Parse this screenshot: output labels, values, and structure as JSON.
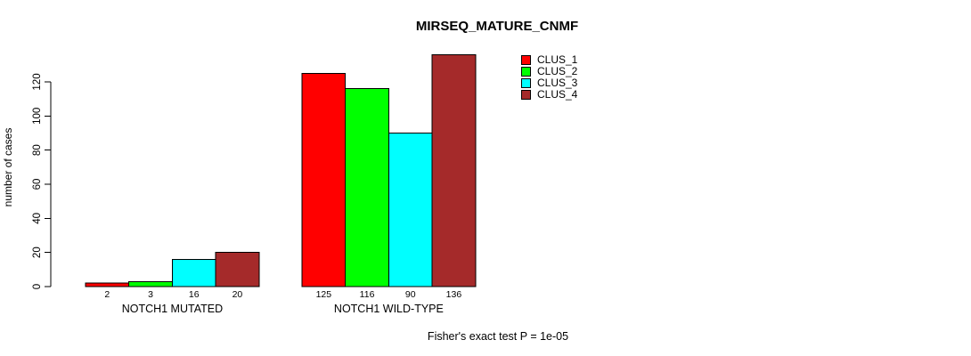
{
  "header": {
    "title": "MIRSEQ_MATURE_CNMF"
  },
  "footnote": {
    "text": "Fisher's exact test P = 1e-05"
  },
  "chart_data": {
    "type": "bar",
    "title": "MIRSEQ_MATURE_CNMF",
    "xlabel": "",
    "ylabel": "number of cases",
    "ylim": [
      0,
      136
    ],
    "yticks": [
      0,
      20,
      40,
      60,
      80,
      100,
      120
    ],
    "grid": false,
    "legend_position": "top-right-of-plot",
    "categories": [
      "NOTCH1 MUTATED",
      "NOTCH1 WILD-TYPE"
    ],
    "series": [
      {
        "name": "CLUS_1",
        "color": "#FF0000",
        "values": [
          2,
          125
        ]
      },
      {
        "name": "CLUS_2",
        "color": "#00FF00",
        "values": [
          3,
          116
        ]
      },
      {
        "name": "CLUS_3",
        "color": "#00FFFF",
        "values": [
          16,
          90
        ]
      },
      {
        "name": "CLUS_4",
        "color": "#A52A2A",
        "values": [
          20,
          136
        ]
      }
    ],
    "bar_value_labels": [
      [
        2,
        3,
        16,
        20
      ],
      [
        125,
        116,
        90,
        136
      ]
    ],
    "annotation": "Fisher's exact test P = 1e-05",
    "bar_border_color": "#000000",
    "axis_color": "#000000"
  }
}
